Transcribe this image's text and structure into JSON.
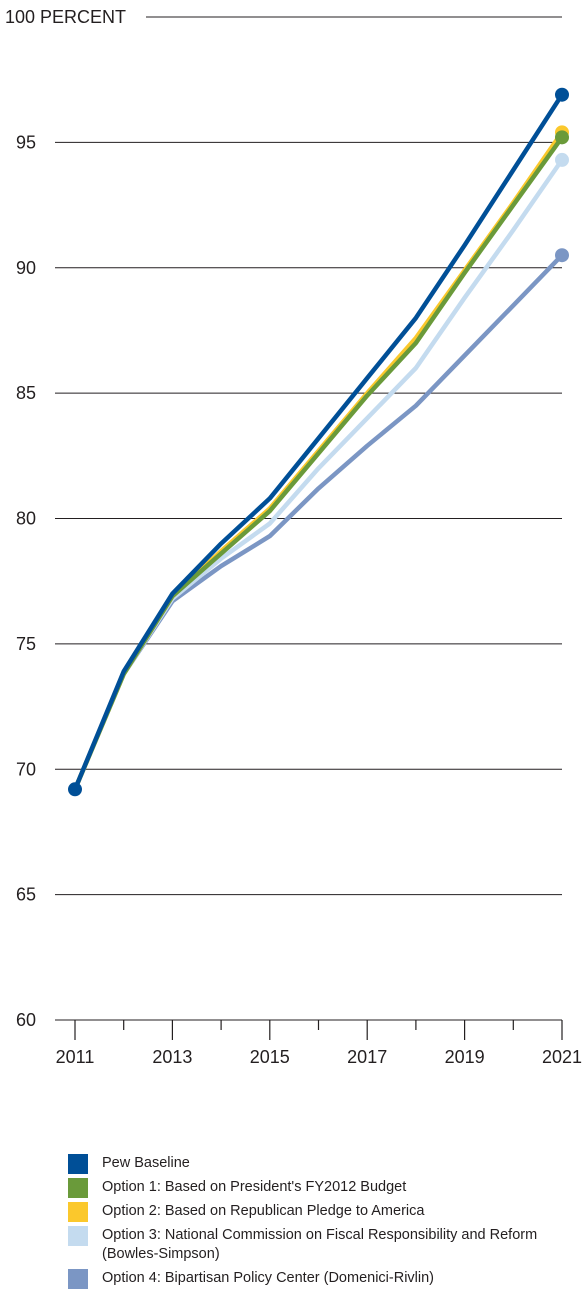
{
  "chart_data": {
    "type": "line",
    "title": "",
    "ylabel": "",
    "ylim": [
      60,
      100
    ],
    "yticks": [
      {
        "value": 100,
        "label": "100 PERCENT"
      },
      {
        "value": 95,
        "label": "95"
      },
      {
        "value": 90,
        "label": "90"
      },
      {
        "value": 85,
        "label": "85"
      },
      {
        "value": 80,
        "label": "80"
      },
      {
        "value": 75,
        "label": "75"
      },
      {
        "value": 70,
        "label": "70"
      },
      {
        "value": 65,
        "label": "65"
      },
      {
        "value": 60,
        "label": "60"
      }
    ],
    "x": [
      2011,
      2012,
      2013,
      2014,
      2015,
      2016,
      2017,
      2018,
      2019,
      2020,
      2021
    ],
    "xtick_labels": [
      "2011",
      "2013",
      "2015",
      "2017",
      "2019",
      "2021"
    ],
    "grid": true,
    "legend_position": "bottom",
    "series": [
      {
        "name": "Option 4: Bipartisan Policy Center (Domenici-Rivlin)",
        "color": "#7b96c4",
        "values": [
          69.2,
          73.8,
          76.7,
          78.1,
          79.3,
          81.2,
          82.9,
          84.5,
          86.5,
          88.5,
          90.5
        ]
      },
      {
        "name": "Option 3: National Commission on Fiscal Responsibility and Reform (Bowles-Simpson)",
        "color": "#c4dbef",
        "values": [
          69.2,
          73.8,
          76.8,
          78.4,
          79.8,
          82.0,
          84.0,
          86.0,
          88.8,
          91.5,
          94.3
        ]
      },
      {
        "name": "Option 2: Based on Republican Pledge to America",
        "color": "#fbc82c",
        "values": [
          69.2,
          73.8,
          76.9,
          78.7,
          80.4,
          82.7,
          85.0,
          87.2,
          89.9,
          92.6,
          95.4
        ]
      },
      {
        "name": "Option 1: Based on President's FY2012 Budget",
        "color": "#6a9a3a",
        "values": [
          69.2,
          73.8,
          76.9,
          78.6,
          80.3,
          82.6,
          84.9,
          87.0,
          89.8,
          92.5,
          95.2
        ]
      },
      {
        "name": "Pew Baseline",
        "color": "#004f97",
        "values": [
          69.2,
          73.9,
          77.0,
          79.0,
          80.8,
          83.2,
          85.6,
          88.0,
          90.9,
          93.9,
          96.9
        ]
      }
    ],
    "end_markers": true,
    "start_marker": {
      "series": "Pew Baseline",
      "x": 2011,
      "value": 69.2
    }
  },
  "legend": {
    "items": [
      {
        "label": "Pew Baseline",
        "color": "#004f97"
      },
      {
        "label": "Option 1: Based on President's FY2012 Budget",
        "color": "#6a9a3a"
      },
      {
        "label": "Option 2: Based on Republican Pledge to America",
        "color": "#fbc82c"
      },
      {
        "label": "Option 3: National Commission on Fiscal Responsibility and Reform (Bowles-Simpson)",
        "color": "#c4dbef"
      },
      {
        "label": "Option 4: Bipartisan Policy Center (Domenici-Rivlin)",
        "color": "#7b96c4"
      }
    ]
  }
}
